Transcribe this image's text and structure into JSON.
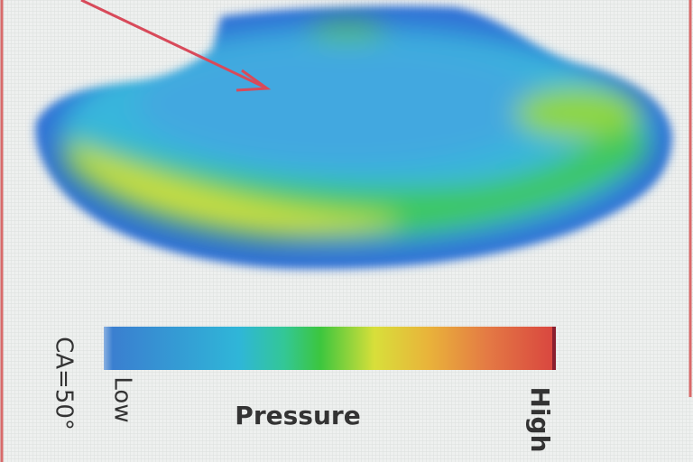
{
  "colorbar": {
    "title": "Pressure",
    "min_label": "Low",
    "max_label": "High"
  },
  "annotation": "CA=50°"
}
